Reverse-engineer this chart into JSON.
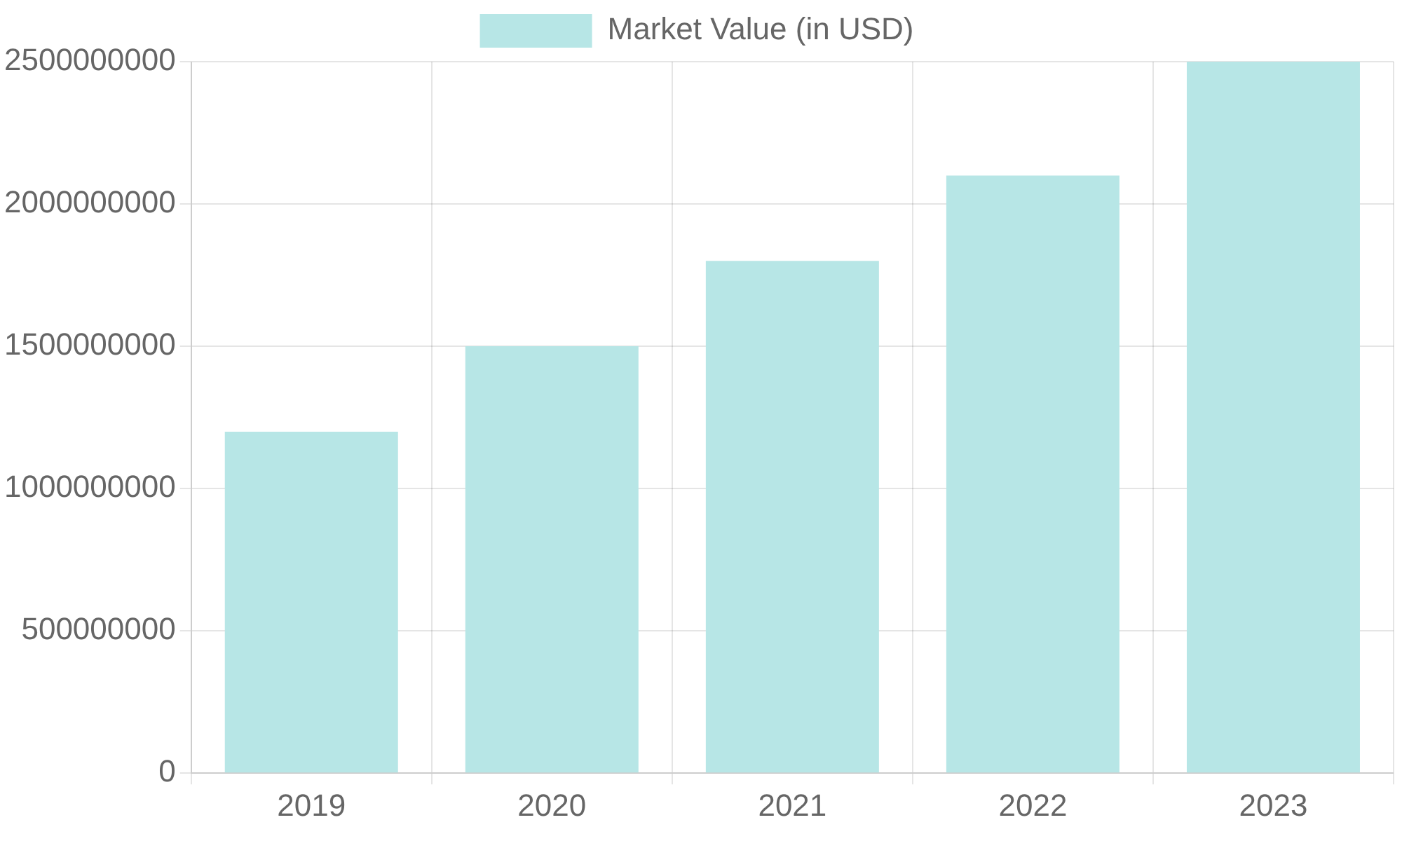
{
  "chart_data": {
    "type": "bar",
    "categories": [
      "2019",
      "2020",
      "2021",
      "2022",
      "2023"
    ],
    "series": [
      {
        "name": "Market Value (in USD)",
        "color": "#b7e6e6",
        "values": [
          1200000000,
          1500000000,
          1800000000,
          2100000000,
          2500000000
        ]
      }
    ],
    "ylim": [
      0,
      2500000000
    ],
    "yticks": [
      0,
      500000000,
      1000000000,
      1500000000,
      2000000000,
      2500000000
    ],
    "grid": true,
    "legend": "top"
  }
}
